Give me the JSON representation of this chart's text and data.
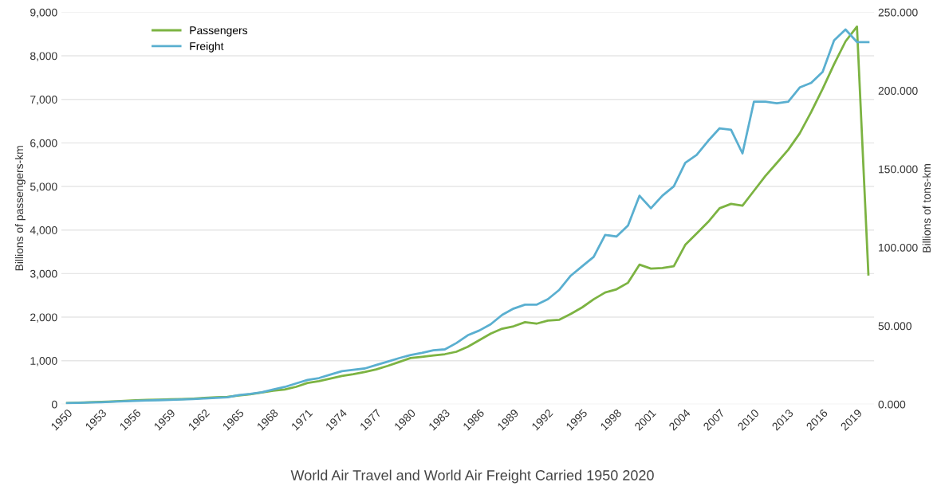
{
  "chart_data": {
    "type": "line",
    "title": "World Air Travel and World Air Freight Carried 1950 2020",
    "ylabel": "Billions of passengers-km",
    "y2label": "Billions of tons-km",
    "categories": [
      "1950",
      null,
      null,
      "1953",
      null,
      null,
      "1956",
      null,
      null,
      "1959",
      null,
      null,
      "1962",
      null,
      null,
      "1965",
      null,
      null,
      "1968",
      null,
      null,
      "1971",
      null,
      null,
      "1974",
      null,
      null,
      "1977",
      null,
      null,
      "1980",
      null,
      null,
      "1983",
      null,
      null,
      "1986",
      null,
      null,
      "1989",
      null,
      null,
      "1992",
      null,
      null,
      "1995",
      null,
      null,
      "1998",
      null,
      null,
      "2001",
      null,
      null,
      "2004",
      null,
      null,
      "2007",
      null,
      null,
      "2010",
      null,
      null,
      "2013",
      null,
      null,
      "2016",
      null,
      null,
      "2019",
      null
    ],
    "series": [
      {
        "name": "Passengers",
        "color": "#7cb342",
        "values": [
          28,
          35,
          45,
          55,
          65,
          78,
          90,
          100,
          105,
          115,
          120,
          130,
          145,
          160,
          170,
          200,
          230,
          270,
          310,
          340,
          400,
          490,
          530,
          590,
          650,
          690,
          740,
          800,
          880,
          970,
          1060,
          1090,
          1120,
          1150,
          1205,
          1320,
          1470,
          1620,
          1735,
          1790,
          1885,
          1850,
          1920,
          1940,
          2075,
          2225,
          2410,
          2565,
          2640,
          2790,
          3205,
          3115,
          3130,
          3170,
          3660,
          3920,
          4185,
          4500,
          4600,
          4560,
          4900,
          5240,
          5540,
          5845,
          6220,
          6710,
          7240,
          7805,
          8330,
          8670,
          2980
        ]
      },
      {
        "name": "Freight",
        "color": "#5aafd0",
        "axis": "y2",
        "values": [
          0.7,
          0.9,
          1.1,
          1.3,
          1.6,
          1.9,
          2.2,
          2.4,
          2.6,
          2.8,
          3.0,
          3.3,
          3.7,
          4.1,
          4.5,
          5.8,
          6.6,
          7.6,
          9.4,
          11,
          13.3,
          15.5,
          16.7,
          18.9,
          21.1,
          22,
          22.8,
          25,
          27.2,
          29.4,
          31.4,
          32.8,
          34.4,
          35,
          39,
          44,
          47,
          51,
          57,
          61,
          63.5,
          63.5,
          67,
          73,
          82,
          88,
          94,
          108,
          107,
          114,
          133,
          125,
          133,
          139,
          154,
          159,
          168,
          176,
          175,
          160,
          193,
          193,
          192,
          193,
          202,
          205,
          212,
          232,
          239,
          231,
          231
        ]
      }
    ],
    "ylim": [
      0,
      9000
    ],
    "yticks": [
      0,
      {
        "value": 1000,
        "label": "1,000"
      },
      {
        "value": 2000,
        "label": "2,000"
      },
      {
        "value": 3000,
        "label": "3,000"
      },
      {
        "value": 4000,
        "label": "4,000"
      },
      {
        "value": 5000,
        "label": "5,000"
      },
      {
        "value": 6000,
        "label": "6,000"
      },
      {
        "value": 7000,
        "label": "7,000"
      },
      {
        "value": 8000,
        "label": "8,000"
      },
      {
        "value": 9000,
        "label": "9,000"
      }
    ],
    "y2lim": [
      0,
      250
    ],
    "y2ticks": [
      {
        "value": 0,
        "label": "0.000"
      },
      {
        "value": 50,
        "label": "50.000"
      },
      {
        "value": 100,
        "label": "100.000"
      },
      {
        "value": 150,
        "label": "150.000"
      },
      {
        "value": 200,
        "label": "200.000"
      },
      {
        "value": 250,
        "label": "250.000"
      }
    ],
    "grid": "y",
    "legend": "top left"
  }
}
